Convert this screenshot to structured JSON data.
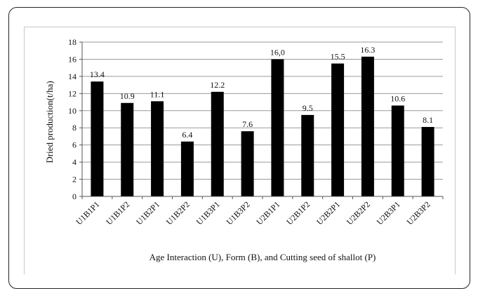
{
  "chart_data": {
    "type": "bar",
    "title": "",
    "xlabel": "Age Interaction (U), Form (B), and Cutting seed of shallot (P)",
    "ylabel": "Dried production(t/ha)",
    "ylim": [
      0,
      18
    ],
    "yticks": [
      0,
      2,
      4,
      6,
      8,
      10,
      12,
      14,
      16,
      18
    ],
    "grid": "horizontal",
    "categories": [
      "U1B1P1",
      "U1B1P2",
      "U1B2P1",
      "U1B2P2",
      "U1B3P1",
      "U1B3P2",
      "U2B1P1",
      "U2B1P2",
      "U2B2P1",
      "U2B2P2",
      "U2B3P1",
      "U2B3P2"
    ],
    "values": [
      13.4,
      10.9,
      11.1,
      6.4,
      12.2,
      7.6,
      16.0,
      9.5,
      15.5,
      16.3,
      10.6,
      8.1
    ],
    "data_labels": [
      "13.4",
      "10.9",
      "11.1",
      "6.4",
      "12.2",
      "7.6",
      "16,0",
      "9.5",
      "15.5",
      "16.3",
      "10.6",
      "8.1"
    ],
    "bar_color": "#000000",
    "grid_color": "#9a9a9a"
  }
}
